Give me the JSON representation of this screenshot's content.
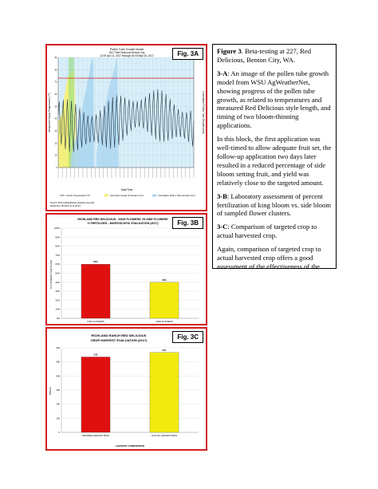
{
  "figA": {
    "label": "Fig. 3A",
    "title_lines": [
      "Pollen Tube Growth Model",
      "2017 Red Delicious Benton City",
      "12:00 Apr 13, 2017 through 00:00 May 16, 2017"
    ],
    "left_axis_label": "Measured Hourly Temperature (°F)",
    "right_axis_label": "Cumulative Pollen Tube Growth (mm)",
    "x_axis_label": "Date/Time",
    "y_ticks": [
      "90",
      "80",
      "70",
      "60",
      "50",
      "40",
      "30",
      "20",
      "10",
      "0"
    ],
    "legend": [
      "Hourly Temperature (°F)",
      "Avg Style Length of Flowers (mm)",
      "Cumulative Pollen Tube Growth (mm)"
    ],
    "source": "Source: WSU AgWeatherNet (weather.wsu.edu)",
    "source2": "Model Run: 5/1/2017 at 11:25 am"
  },
  "figB": {
    "label": "Fig. 3B",
    "title_line1": "RICHLAND RED DELICIOUS - KING FLOWERS VS SIDE FLOWERS",
    "title_line2": "% FERTILIZED - MICROSCOPIC EVALUATION (2017)",
    "ylabel": "% FLOWERS FERTILIZED",
    "ticks": [
      "100%",
      "90%",
      "80%",
      "70%",
      "60%",
      "50%",
      "40%",
      "30%",
      "20%",
      "10%",
      "0%"
    ]
  },
  "figC": {
    "label": "Fig. 3C",
    "title_line1": "RICHLAND RANCH RED DELICIOUS",
    "title_line2": "CROP HARVEST EVALUATION (2017)",
    "ylabel": "BINS/A",
    "xlabel": "HARVEST COMPARISON",
    "ticks": [
      "600",
      "500",
      "400",
      "300",
      "200",
      "100",
      "0"
    ]
  },
  "chart_data": [
    {
      "type": "bar",
      "categories": [
        "KING FLOWERS",
        "SIDE FLOWERS"
      ],
      "values": [
        60,
        40
      ],
      "value_labels": [
        "60%",
        "40%"
      ],
      "colors": [
        "#e01010",
        "#f2ea0c"
      ],
      "ylim": [
        0,
        100
      ]
    },
    {
      "type": "bar",
      "categories": [
        "DESIRED HARVEST BINS",
        "ACTUAL HARVEST BINS"
      ],
      "values": [
        535,
        567
      ],
      "value_labels": [
        "535",
        "567"
      ],
      "colors": [
        "#e01010",
        "#f2ea0c"
      ],
      "ylim": [
        0,
        600
      ]
    }
  ],
  "caption": {
    "figure_label": "Figure 3",
    "figure_text": ". Beta-testing at 227, Red Delicious, Benton City, WA.",
    "a_label": "3-A",
    "a_text": ": An image of the pollen tube growth model from WSU AgWeatherNet, showing progress of the pollen tube growth, as related to temperatures and measured Red Delicious style length, and timing of two bloom-thinning applications.",
    "block_text": "In this block, the first application was well-timed to allow adequate fruit set, the follow-up application two days later resulted in a reduced percentage of side bloom setting fruit, and yield was relatively close to the targeted amount.",
    "b_label": "3-B",
    "b_text": ": Laboratory assessment of percent fertilization of king bloom vs. side bloom of sampled flower clusters.",
    "c_label": "3-C",
    "c_text": ": Comparison of targeted crop to actual harvested crop.",
    "again_text": "Again, comparison of targeted crop to actual harvested crop offers a good assessment of the effectiveness of the model in predicting thinning applications and understanding of model concept by users."
  }
}
